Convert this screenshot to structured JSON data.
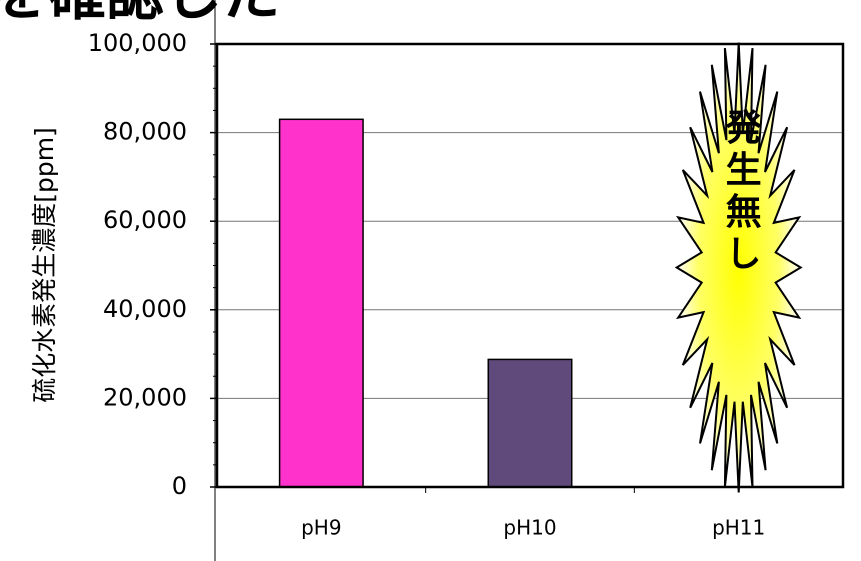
{
  "chart_data": {
    "type": "bar",
    "title": "を確認した",
    "y_label": "硫化水素発生濃度[ppm]",
    "annotation": "発生無し",
    "categories": [
      "pH9",
      "pH10",
      "pH11"
    ],
    "values": [
      83000,
      28800,
      0
    ],
    "colors": [
      "#ff33cc",
      "#604a7b",
      "#ffff00"
    ],
    "ylim": [
      0,
      100000
    ],
    "yticks": [
      0,
      {
        "value": 20000,
        "label": "20,000"
      },
      {
        "value": 40000,
        "label": "40,000"
      },
      {
        "value": 60000,
        "label": "60,000"
      },
      {
        "value": 80000,
        "label": "80,000"
      },
      {
        "value": 100000,
        "label": "100,000"
      }
    ],
    "grid": true
  }
}
